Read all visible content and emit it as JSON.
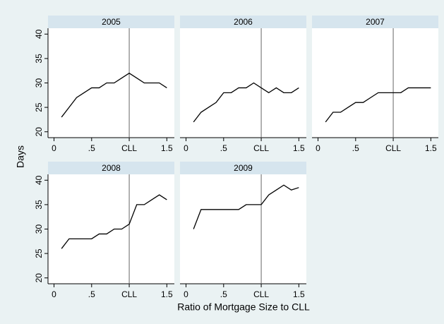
{
  "y_label": "Days",
  "x_label": "Ratio of Mortgage Size to CLL",
  "chart_data": [
    {
      "type": "line",
      "title": "2005",
      "x": [
        0.1,
        0.2,
        0.3,
        0.4,
        0.5,
        0.6,
        0.7,
        0.8,
        0.9,
        1.0,
        1.1,
        1.2,
        1.3,
        1.4,
        1.5
      ],
      "values": [
        23,
        25,
        27,
        28,
        29,
        29,
        30,
        30,
        31,
        32,
        31,
        30,
        30,
        30,
        29
      ],
      "color": "#000000",
      "xline": 1,
      "xlim": [
        -0.08,
        1.6
      ],
      "ylim": [
        18.8,
        41.2
      ],
      "xticks": [
        0,
        {
          "value": 0.5,
          "label": ".5"
        },
        {
          "value": 1,
          "label": "CLL"
        },
        1.5
      ],
      "yticks": [
        20,
        25,
        30,
        35,
        40
      ]
    },
    {
      "type": "line",
      "title": "2006",
      "x": [
        0.1,
        0.2,
        0.3,
        0.4,
        0.5,
        0.6,
        0.7,
        0.8,
        0.9,
        1.0,
        1.1,
        1.2,
        1.3,
        1.4,
        1.5
      ],
      "values": [
        22,
        24,
        25,
        26,
        28,
        28,
        29,
        29,
        30,
        29,
        28,
        29,
        28,
        28,
        29
      ],
      "color": "#000000",
      "xline": 1,
      "xlim": [
        -0.08,
        1.6
      ],
      "ylim": [
        18.8,
        41.2
      ],
      "xticks": [
        0,
        {
          "value": 0.5,
          "label": ".5"
        },
        {
          "value": 1,
          "label": "CLL"
        },
        1.5
      ],
      "yticks": [
        20,
        25,
        30,
        35,
        40
      ]
    },
    {
      "type": "line",
      "title": "2007",
      "x": [
        0.1,
        0.2,
        0.3,
        0.4,
        0.5,
        0.6,
        0.7,
        0.8,
        0.9,
        1.0,
        1.1,
        1.2,
        1.3,
        1.4,
        1.5
      ],
      "values": [
        22,
        24,
        24,
        25,
        26,
        26,
        27,
        28,
        28,
        28,
        28,
        29,
        29,
        29,
        29
      ],
      "color": "#000000",
      "xline": 1,
      "xlim": [
        -0.08,
        1.6
      ],
      "ylim": [
        18.8,
        41.2
      ],
      "xticks": [
        0,
        {
          "value": 0.5,
          "label": ".5"
        },
        {
          "value": 1,
          "label": "CLL"
        },
        1.5
      ],
      "yticks": [
        20,
        25,
        30,
        35,
        40
      ]
    },
    {
      "type": "line",
      "title": "2008",
      "x": [
        0.1,
        0.2,
        0.3,
        0.4,
        0.5,
        0.6,
        0.7,
        0.8,
        0.9,
        1.0,
        1.1,
        1.2,
        1.3,
        1.4,
        1.5
      ],
      "values": [
        26,
        28,
        28,
        28,
        28,
        29,
        29,
        30,
        30,
        31,
        35,
        35,
        36,
        37,
        36
      ],
      "color": "#000000",
      "xline": 1,
      "xlim": [
        -0.08,
        1.6
      ],
      "ylim": [
        18.8,
        41.2
      ],
      "xticks": [
        0,
        {
          "value": 0.5,
          "label": ".5"
        },
        {
          "value": 1,
          "label": "CLL"
        },
        1.5
      ],
      "yticks": [
        20,
        25,
        30,
        35,
        40
      ]
    },
    {
      "type": "line",
      "title": "2009",
      "x": [
        0.1,
        0.2,
        0.3,
        0.4,
        0.5,
        0.6,
        0.7,
        0.8,
        0.9,
        1.0,
        1.1,
        1.2,
        1.3,
        1.4,
        1.5
      ],
      "values": [
        30,
        34,
        34,
        34,
        34,
        34,
        34,
        35,
        35,
        35,
        37,
        38,
        39,
        38,
        38.5
      ],
      "color": "#000000",
      "xline": 1,
      "xlim": [
        -0.08,
        1.6
      ],
      "ylim": [
        18.8,
        41.2
      ],
      "xticks": [
        0,
        {
          "value": 0.5,
          "label": ".5"
        },
        {
          "value": 1,
          "label": "CLL"
        },
        1.5
      ],
      "yticks": [
        20,
        25,
        30,
        35,
        40
      ]
    }
  ]
}
